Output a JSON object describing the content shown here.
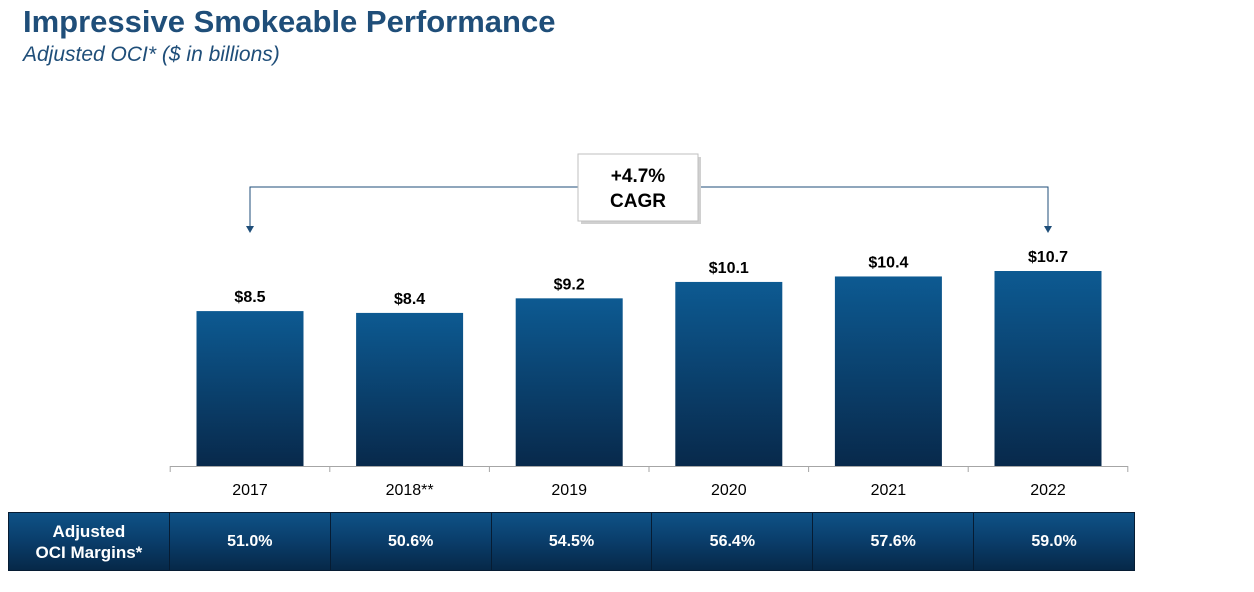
{
  "title": "Impressive Smokeable Performance",
  "subtitle": "Adjusted OCI* ($ in billions)",
  "colors": {
    "title": "#1f4e79",
    "bar_top": "#0d5a92",
    "bar_bottom": "#08294b",
    "connector": "#1f4e79"
  },
  "chart_data": {
    "type": "bar",
    "title": "Impressive Smokeable Performance",
    "subtitle": "Adjusted OCI* ($ in billions)",
    "categories": [
      "2017",
      "2018**",
      "2019",
      "2020",
      "2021",
      "2022"
    ],
    "values": [
      8.5,
      8.4,
      9.2,
      10.1,
      10.4,
      10.7
    ],
    "value_labels": [
      "$8.5",
      "$8.4",
      "$9.2",
      "$10.1",
      "$10.4",
      "$10.7"
    ],
    "ylim": [
      0,
      10.7
    ],
    "grid": false,
    "annotation": {
      "line1": "+4.7%",
      "line2": "CAGR",
      "from": "2017",
      "to": "2022"
    }
  },
  "margins_table": {
    "header_line1": "Adjusted",
    "header_line2": "OCI Margins*",
    "values": [
      "51.0%",
      "50.6%",
      "54.5%",
      "56.4%",
      "57.6%",
      "59.0%"
    ]
  }
}
